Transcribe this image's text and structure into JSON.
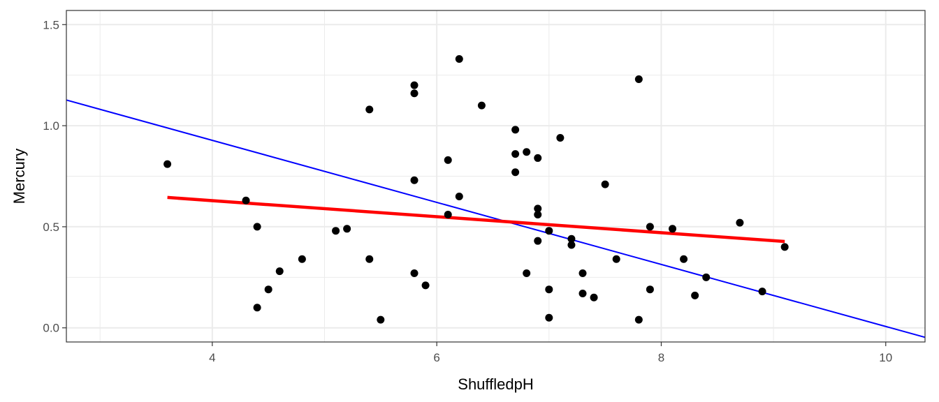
{
  "chart_data": {
    "type": "scatter",
    "xlabel": "ShuffledpH",
    "ylabel": "Mercury",
    "xlim": [
      2.7,
      10.35
    ],
    "ylim": [
      -0.07,
      1.57
    ],
    "x_ticks": [
      4,
      6,
      8,
      10
    ],
    "y_ticks": [
      0.0,
      0.5,
      1.0,
      1.5
    ],
    "y_tick_labels": [
      "0.0",
      "0.5",
      "1.0",
      "1.5"
    ],
    "grid": true,
    "colors": {
      "points": "#000000",
      "fit_line": "#ff0000",
      "reference_line": "#0000ff",
      "grid": "#ebebeb",
      "panel_border": "#333333"
    },
    "points": [
      [
        3.6,
        0.81
      ],
      [
        4.3,
        0.63
      ],
      [
        4.4,
        0.5
      ],
      [
        4.4,
        0.1
      ],
      [
        4.5,
        0.19
      ],
      [
        4.6,
        0.28
      ],
      [
        4.8,
        0.34
      ],
      [
        5.1,
        0.48
      ],
      [
        5.2,
        0.49
      ],
      [
        5.4,
        1.08
      ],
      [
        5.4,
        0.34
      ],
      [
        5.5,
        0.04
      ],
      [
        5.8,
        1.2
      ],
      [
        5.8,
        1.16
      ],
      [
        5.8,
        0.73
      ],
      [
        5.8,
        0.27
      ],
      [
        5.9,
        0.21
      ],
      [
        6.1,
        0.83
      ],
      [
        6.1,
        0.56
      ],
      [
        6.2,
        1.33
      ],
      [
        6.2,
        0.65
      ],
      [
        6.4,
        1.1
      ],
      [
        6.7,
        0.98
      ],
      [
        6.7,
        0.86
      ],
      [
        6.7,
        0.77
      ],
      [
        6.8,
        0.87
      ],
      [
        6.8,
        0.27
      ],
      [
        6.9,
        0.84
      ],
      [
        6.9,
        0.59
      ],
      [
        6.9,
        0.56
      ],
      [
        6.9,
        0.43
      ],
      [
        7.0,
        0.48
      ],
      [
        7.0,
        0.19
      ],
      [
        7.0,
        0.05
      ],
      [
        7.1,
        0.94
      ],
      [
        7.2,
        0.44
      ],
      [
        7.2,
        0.41
      ],
      [
        7.3,
        0.27
      ],
      [
        7.3,
        0.17
      ],
      [
        7.4,
        0.15
      ],
      [
        7.5,
        0.71
      ],
      [
        7.6,
        0.34
      ],
      [
        7.8,
        1.23
      ],
      [
        7.8,
        0.04
      ],
      [
        7.9,
        0.5
      ],
      [
        7.9,
        0.19
      ],
      [
        8.1,
        0.49
      ],
      [
        8.2,
        0.34
      ],
      [
        8.3,
        0.16
      ],
      [
        8.4,
        0.25
      ],
      [
        8.7,
        0.52
      ],
      [
        8.9,
        0.18
      ],
      [
        9.1,
        0.4
      ]
    ],
    "fit_line": {
      "x": [
        3.6,
        9.1
      ],
      "y": [
        0.645,
        0.427
      ]
    },
    "reference_line": {
      "x": [
        2.7,
        10.35
      ],
      "y": [
        1.127,
        -0.047
      ]
    }
  }
}
